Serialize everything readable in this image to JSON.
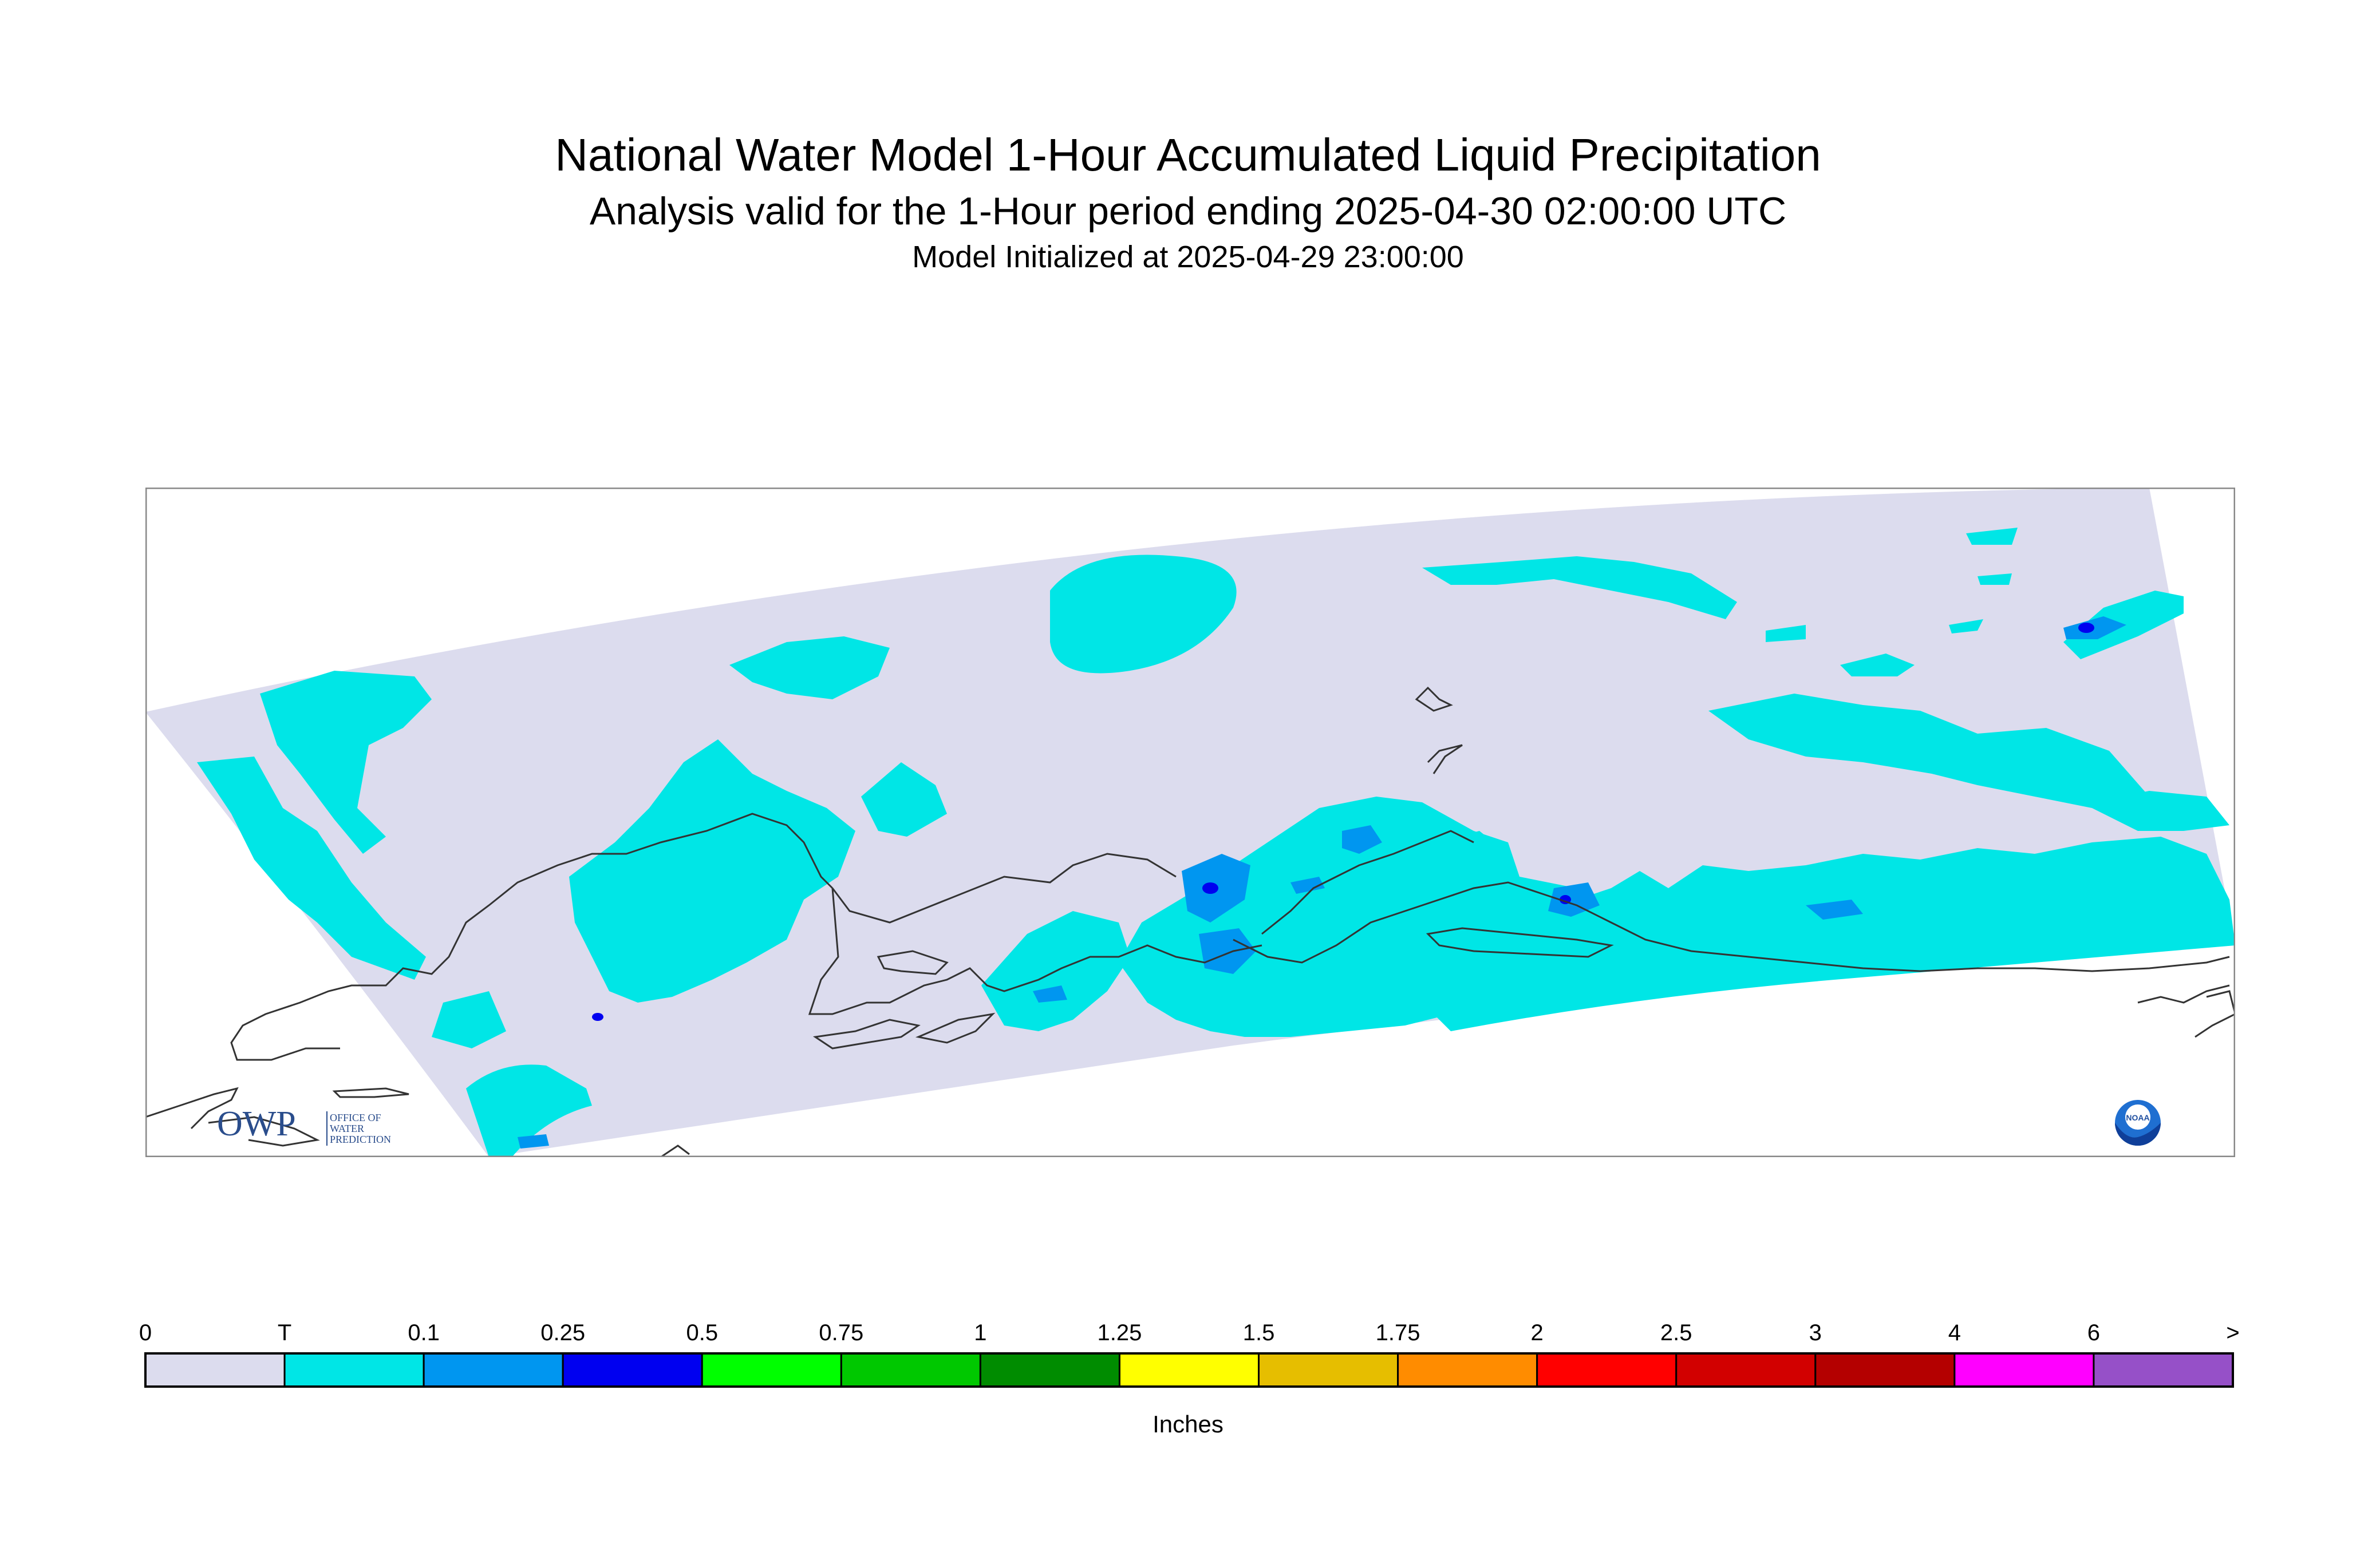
{
  "title": "National Water Model 1-Hour Accumulated Liquid Precipitation",
  "subtitle": "Analysis valid for the 1-Hour period ending 2025-04-30 02:00:00 UTC",
  "init_line": "Model Initialized at 2025-04-29 23:00:00",
  "logos": {
    "owp_mark": "OWP",
    "owp_text": [
      "OFFICE OF",
      "WATER",
      "PREDICTION"
    ],
    "noaa_text": "NOAA"
  },
  "map": {
    "region": "Alaska",
    "colors": {
      "zero": "#dcdcee",
      "trace": "#00e6e6",
      "light": "#0096f0",
      "medium": "#0000f0",
      "coast": "#333333",
      "frame": "#888888"
    }
  },
  "legend": {
    "unit_label": "Inches",
    "tick_labels": [
      "0",
      "T",
      "0.1",
      "0.25",
      "0.5",
      "0.75",
      "1",
      "1.25",
      "1.5",
      "1.75",
      "2",
      "2.5",
      "3",
      "4",
      "6",
      ">"
    ],
    "colors": [
      "#dcdcee",
      "#00e6e6",
      "#0096f0",
      "#0000f0",
      "#00ff00",
      "#00c800",
      "#008c00",
      "#ffff00",
      "#e6be00",
      "#ff8c00",
      "#ff0000",
      "#d20000",
      "#b40000",
      "#ff00ff",
      "#9650c8"
    ]
  }
}
